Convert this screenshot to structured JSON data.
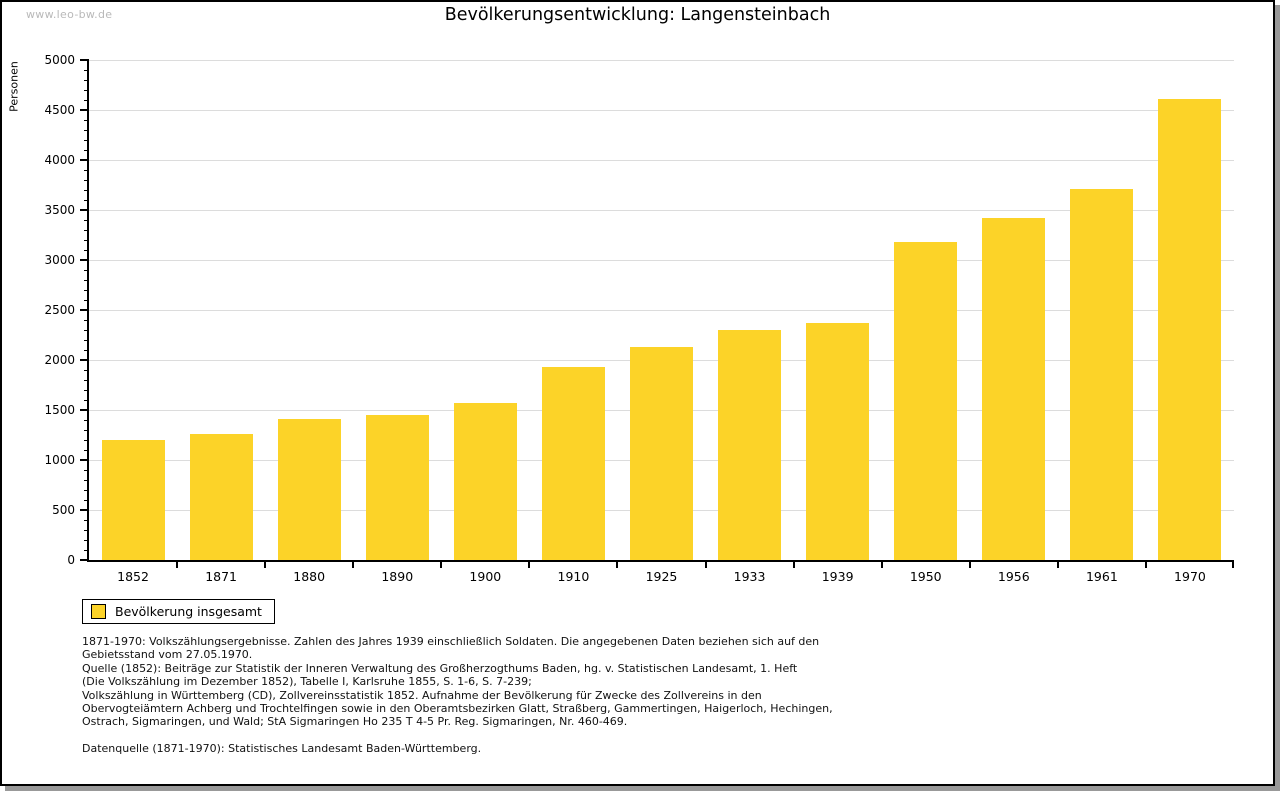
{
  "watermark": "www.leo-bw.de",
  "chart_data": {
    "type": "bar",
    "title": "Bevölkerungsentwicklung: Langensteinbach",
    "xlabel": "",
    "ylabel": "Personen",
    "categories": [
      "1852",
      "1871",
      "1880",
      "1890",
      "1900",
      "1910",
      "1925",
      "1933",
      "1939",
      "1950",
      "1956",
      "1961",
      "1970"
    ],
    "values": [
      1200,
      1260,
      1415,
      1450,
      1575,
      1935,
      2135,
      2305,
      2370,
      3180,
      3420,
      3710,
      4610
    ],
    "series_name": "Bevölkerung insgesamt",
    "ylim": [
      0,
      5000
    ],
    "ytick_step": 500,
    "ytick_minor_step": 100,
    "grid": true,
    "legend_position": "bottom-left",
    "legend_label": "Bevölkerung insgesamt"
  },
  "colors": {
    "bar": "#FCD328",
    "grid": "#DCDCDC",
    "axis": "#000000",
    "watermark": "#B9B9B9",
    "frame_shadow": "#999999"
  },
  "notes": {
    "lines": [
      "1871-1970: Volkszählungsergebnisse. Zahlen des Jahres 1939 einschließlich Soldaten. Die angegebenen Daten beziehen sich auf den",
      "Gebietsstand vom 27.05.1970.",
      "Quelle (1852): Beiträge zur Statistik der Inneren Verwaltung des Großherzogthums Baden, hg. v. Statistischen Landesamt, 1. Heft",
      "(Die Volkszählung im Dezember 1852), Tabelle I, Karlsruhe 1855, S. 1-6, S. 7-239;",
      "Volkszählung in Württemberg (CD), Zollvereinsstatistik 1852. Aufnahme der Bevölkerung für Zwecke des Zollvereins in den",
      "Obervogteiämtern Achberg und Trochtelfingen sowie in den Oberamtsbezirken Glatt, Straßberg, Gammertingen, Haigerloch, Hechingen,",
      "Ostrach, Sigmaringen, und Wald; StA Sigmaringen Ho 235 T 4-5 Pr. Reg. Sigmaringen, Nr. 460-469."
    ],
    "source": "Datenquelle (1871-1970): Statistisches Landesamt Baden-Württemberg."
  }
}
